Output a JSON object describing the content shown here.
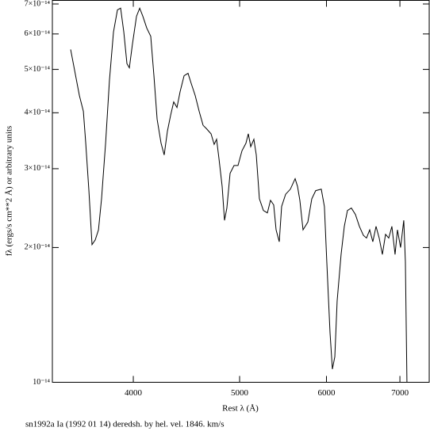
{
  "chart_data": {
    "type": "line",
    "xscale": "log",
    "yscale": "log",
    "grid": false,
    "x_label": "Rest λ (Å)",
    "y_label": "fλ (ergs/s cm**2 Å) or arbitrary units",
    "caption": "sn1992a Ia (1992 01 14) deredsh. by hel. vel.  1846. km/s",
    "xlim": [
      3375,
      7444
    ],
    "ylim": [
      1e-14,
      7.13e-14
    ],
    "xticks": [
      4000,
      5000,
      6000,
      7000
    ],
    "yticks": [
      {
        "value": 1e-14,
        "label": "10⁻¹⁴"
      },
      {
        "value": 2e-14,
        "label": "2×10⁻¹⁴"
      },
      {
        "value": 3e-14,
        "label": "3×10⁻¹⁴"
      },
      {
        "value": 4e-14,
        "label": "4×10⁻¹⁴"
      },
      {
        "value": 5e-14,
        "label": "5×10⁻¹⁴"
      },
      {
        "value": 6e-14,
        "label": "6×10⁻¹⁴"
      },
      {
        "value": 7e-14,
        "label": "7×10⁻¹⁴"
      }
    ],
    "x": [
      3507,
      3572,
      3602,
      3620,
      3644,
      3668,
      3693,
      3718,
      3742,
      3774,
      3805,
      3837,
      3869,
      3895,
      3921,
      3947,
      3967,
      3993,
      4027,
      4054,
      4081,
      4115,
      4149,
      4177,
      4205,
      4240,
      4268,
      4297,
      4326,
      4354,
      4384,
      4413,
      4450,
      4487,
      4517,
      4555,
      4593,
      4631,
      4662,
      4709,
      4740,
      4764,
      4788,
      4820,
      4844,
      4868,
      4901,
      4942,
      4983,
      5025,
      5067,
      5092,
      5118,
      5152,
      5178,
      5212,
      5256,
      5300,
      5335,
      5371,
      5398,
      5434,
      5461,
      5507,
      5562,
      5618,
      5646,
      5674,
      5712,
      5770,
      5818,
      5866,
      5935,
      5974,
      6004,
      6045,
      6075,
      6106,
      6136,
      6187,
      6229,
      6270,
      6322,
      6376,
      6429,
      6483,
      6526,
      6570,
      6613,
      6658,
      6702,
      6747,
      6792,
      6838,
      6883,
      6929,
      6964,
      7010,
      7057,
      7081,
      7104
    ],
    "series": [
      {
        "color": "#000000",
        "values": [
          5.54e-14,
          4.37e-14,
          4.03e-14,
          3.42e-14,
          2.68e-14,
          2.03e-14,
          2.08e-14,
          2.19e-14,
          2.57e-14,
          3.42e-14,
          4.74e-14,
          6.06e-14,
          6.79e-14,
          6.85e-14,
          6.06e-14,
          5.15e-14,
          5.04e-14,
          5.7e-14,
          6.57e-14,
          6.85e-14,
          6.57e-14,
          6.18e-14,
          5.93e-14,
          4.84e-14,
          3.87e-14,
          3.42e-14,
          3.22e-14,
          3.64e-14,
          3.95e-14,
          4.23e-14,
          4.11e-14,
          4.46e-14,
          4.84e-14,
          4.9e-14,
          4.65e-14,
          4.37e-14,
          4.03e-14,
          3.75e-14,
          3.69e-14,
          3.59e-14,
          3.4e-14,
          3.49e-14,
          3.16e-14,
          2.74e-14,
          2.3e-14,
          2.45e-14,
          2.93e-14,
          3.05e-14,
          3.05e-14,
          3.29e-14,
          3.42e-14,
          3.59e-14,
          3.36e-14,
          3.49e-14,
          3.22e-14,
          2.57e-14,
          2.42e-14,
          2.39e-14,
          2.55e-14,
          2.49e-14,
          2.19e-14,
          2.06e-14,
          2.47e-14,
          2.63e-14,
          2.7e-14,
          2.85e-14,
          2.74e-14,
          2.55e-14,
          2.19e-14,
          2.28e-14,
          2.57e-14,
          2.68e-14,
          2.7e-14,
          2.47e-14,
          1.86e-14,
          1.29e-14,
          1.07e-14,
          1.14e-14,
          1.52e-14,
          1.93e-14,
          2.23e-14,
          2.42e-14,
          2.45e-14,
          2.37e-14,
          2.23e-14,
          2.13e-14,
          2.1e-14,
          2.19e-14,
          2.06e-14,
          2.23e-14,
          2.1e-14,
          1.93e-14,
          2.14e-14,
          2.1e-14,
          2.23e-14,
          1.93e-14,
          2.19e-14,
          2e-14,
          2.3e-14,
          1.86e-14,
          1e-14
        ]
      }
    ]
  }
}
